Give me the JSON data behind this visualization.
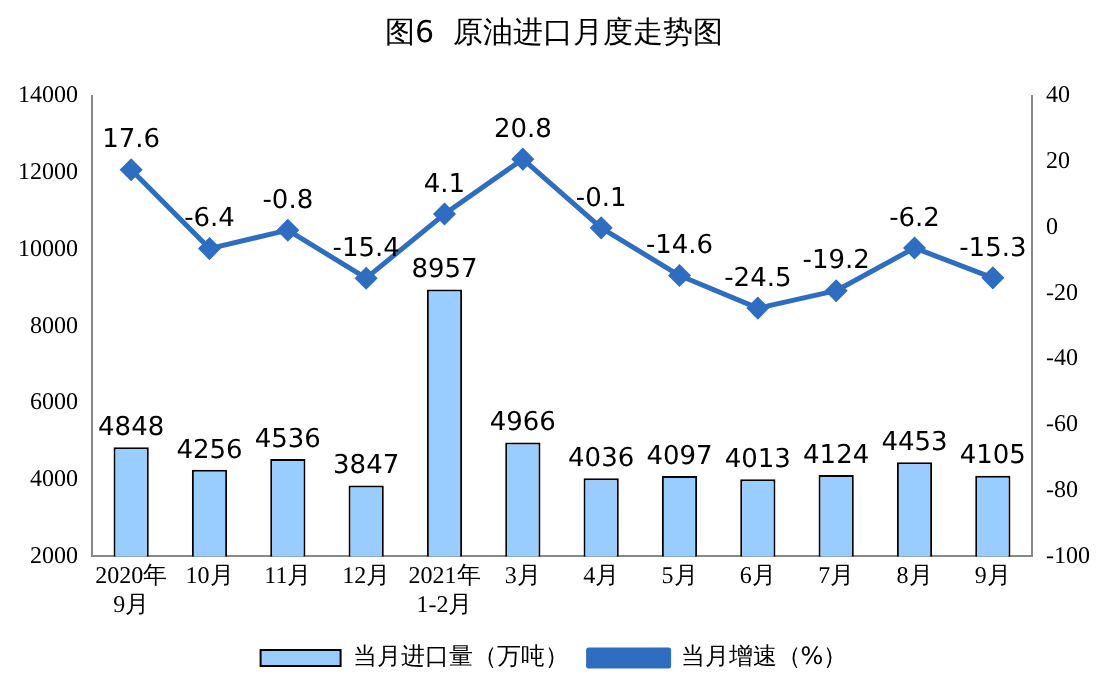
{
  "chart_data": {
    "type": "bar",
    "title": "图6  原油进口月度走势图",
    "categories": [
      "2020年\n9月",
      "10月",
      "11月",
      "12月",
      "2021年\n1-2月",
      "3月",
      "4月",
      "5月",
      "6月",
      "7月",
      "8月",
      "9月"
    ],
    "series": [
      {
        "name": "当月进口量（万吨）",
        "color": "#99ccff",
        "values": [
          4848,
          4256,
          4536,
          3847,
          8957,
          4966,
          4036,
          4097,
          4013,
          4124,
          4453,
          4105
        ]
      },
      {
        "name": "当月增速（%）",
        "type": "line",
        "axis": "y2",
        "color": "#2e6dc0",
        "marker": "diamond",
        "values": [
          17.6,
          -6.4,
          -0.8,
          -15.4,
          4.1,
          20.8,
          -0.1,
          -14.6,
          -24.5,
          -19.2,
          -6.2,
          -15.3
        ]
      }
    ],
    "ylim": [
      2000,
      14000
    ],
    "yticks": [
      2000,
      4000,
      6000,
      8000,
      10000,
      12000,
      14000
    ],
    "y2lim": [
      -100,
      40
    ],
    "y2ticks": [
      -100,
      -80,
      -60,
      -40,
      -20,
      0,
      20,
      40
    ],
    "data_labels": true,
    "grid": false,
    "legend": "bottom"
  }
}
